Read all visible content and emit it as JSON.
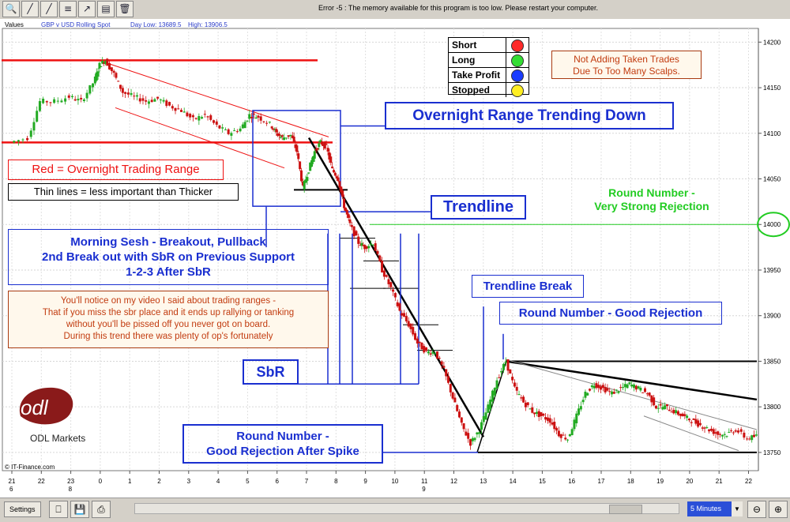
{
  "window": {
    "error_message": "Error -5 : The memory available for this program is too low. Please restart your computer.",
    "toolbar_icons": [
      "zoom-icon",
      "draw-line-icon",
      "trendline-icon",
      "fib-icon",
      "signal-icon",
      "period-icon",
      "delete-icon"
    ]
  },
  "chart_header": {
    "values_label": "Values",
    "instrument": "GBP v USD Rolling Spot",
    "day_low": "Day Low: 13689.5",
    "day_high": "High: 13906.5"
  },
  "legend": {
    "items": [
      {
        "label": "Short",
        "color": "#ff2a2a"
      },
      {
        "label": "Long",
        "color": "#33dd33"
      },
      {
        "label": "Take Profit",
        "color": "#1a3cff"
      },
      {
        "label": "Stopped",
        "color": "#ffee22"
      }
    ]
  },
  "annotations": {
    "not_adding": "Not Adding Taken Trades\nDue To Too Many Scalps.",
    "overnight_range": "Overnight Range Trending Down",
    "red_overnight": "Red = Overnight Trading Range",
    "thin_lines": "Thin lines = less important than Thicker",
    "trendline": "Trendline",
    "round_strong": "Round Number -\nVery Strong Rejection",
    "morning": "Morning Sesh - Breakout, Pullback\n2nd Break out with SbR on Previous Support\n1-2-3 After SbR",
    "note": "You'll notice on my video I said about trading ranges -\nThat if you miss the sbr place and it ends up rallying or tanking\nwithout you'll be pissed off you never got on board.\nDuring this trend there was plenty of op's fortunately",
    "trendline_break": "Trendline Break",
    "round_good": "Round Number - Good Rejection",
    "sbr": "SbR",
    "round_spike": "Round Number -\nGood Rejection After Spike"
  },
  "brand": {
    "logo_text": "odl",
    "name": "ODL Markets",
    "copyright": "© IT-Finance.com"
  },
  "bottom": {
    "settings_label": "Settings",
    "timeframe": "5 Minutes"
  },
  "colors": {
    "red_range": "#ee1111",
    "annotation_blue": "#1a2fd0",
    "green": "#22cc22",
    "note_brown": "#a83a10",
    "up_candle": "#22aa22",
    "down_candle": "#cc1111"
  },
  "chart_data": {
    "type": "candlestick",
    "title": "",
    "instrument": "GBP v USD Rolling Spot",
    "y_ticks": [
      14200,
      14150,
      14100,
      14050,
      14000,
      13950,
      13900,
      13850,
      13800,
      13750
    ],
    "ylim": [
      13730,
      14215
    ],
    "x_tick_labels": [
      "21",
      "22",
      "23",
      "0",
      "1",
      "2",
      "3",
      "4",
      "5",
      "6",
      "7",
      "8",
      "9",
      "10",
      "11",
      "12",
      "13",
      "14",
      "15",
      "16",
      "17",
      "18",
      "19",
      "20",
      "21",
      "22"
    ],
    "x_date_labels": [
      "6",
      "8",
      "9"
    ],
    "highlighted_level": 14000,
    "levels": {
      "overnight_top": 14180,
      "overnight_bottom": 14090,
      "range_low": 13750,
      "range_high": 13850
    },
    "price_path": [
      [
        0,
        14090
      ],
      [
        0.6,
        14095
      ],
      [
        1.0,
        14135
      ],
      [
        1.5,
        14135
      ],
      [
        2.0,
        14140
      ],
      [
        2.4,
        14135
      ],
      [
        2.8,
        14155
      ],
      [
        3.0,
        14175
      ],
      [
        3.2,
        14180
      ],
      [
        3.5,
        14165
      ],
      [
        3.8,
        14145
      ],
      [
        4.2,
        14140
      ],
      [
        4.6,
        14135
      ],
      [
        5.0,
        14138
      ],
      [
        5.4,
        14130
      ],
      [
        5.8,
        14125
      ],
      [
        6.2,
        14115
      ],
      [
        6.6,
        14120
      ],
      [
        7.0,
        14108
      ],
      [
        7.4,
        14100
      ],
      [
        7.8,
        14105
      ],
      [
        8.1,
        14120
      ],
      [
        8.4,
        14118
      ],
      [
        8.8,
        14110
      ],
      [
        9.0,
        14100
      ],
      [
        9.2,
        14095
      ],
      [
        9.5,
        14098
      ],
      [
        9.7,
        14080
      ],
      [
        9.9,
        14040
      ],
      [
        10.1,
        14060
      ],
      [
        10.3,
        14080
      ],
      [
        10.5,
        14090
      ],
      [
        10.7,
        14085
      ],
      [
        10.9,
        14060
      ],
      [
        11.1,
        14050
      ],
      [
        11.3,
        14020
      ],
      [
        11.5,
        14000
      ],
      [
        11.8,
        13980
      ],
      [
        12.0,
        13975
      ],
      [
        12.3,
        13980
      ],
      [
        12.6,
        13950
      ],
      [
        12.9,
        13930
      ],
      [
        13.2,
        13905
      ],
      [
        13.5,
        13890
      ],
      [
        13.8,
        13870
      ],
      [
        14.1,
        13860
      ],
      [
        14.4,
        13860
      ],
      [
        14.7,
        13840
      ],
      [
        15.0,
        13810
      ],
      [
        15.3,
        13780
      ],
      [
        15.6,
        13760
      ],
      [
        15.9,
        13775
      ],
      [
        16.2,
        13800
      ],
      [
        16.5,
        13830
      ],
      [
        16.8,
        13850
      ],
      [
        17.1,
        13820
      ],
      [
        17.4,
        13805
      ],
      [
        17.7,
        13795
      ],
      [
        18.0,
        13790
      ],
      [
        18.3,
        13785
      ],
      [
        18.6,
        13770
      ],
      [
        18.9,
        13765
      ],
      [
        19.2,
        13790
      ],
      [
        19.5,
        13815
      ],
      [
        19.8,
        13825
      ],
      [
        20.1,
        13820
      ],
      [
        20.4,
        13815
      ],
      [
        20.7,
        13820
      ],
      [
        21.0,
        13825
      ],
      [
        21.3,
        13820
      ],
      [
        21.6,
        13815
      ],
      [
        21.9,
        13800
      ],
      [
        22.2,
        13800
      ],
      [
        22.5,
        13795
      ],
      [
        22.8,
        13790
      ],
      [
        23.1,
        13785
      ],
      [
        23.4,
        13780
      ],
      [
        23.7,
        13775
      ],
      [
        24.0,
        13770
      ],
      [
        24.3,
        13770
      ],
      [
        24.6,
        13775
      ],
      [
        25.0,
        13765
      ],
      [
        25.3,
        13768
      ]
    ]
  }
}
